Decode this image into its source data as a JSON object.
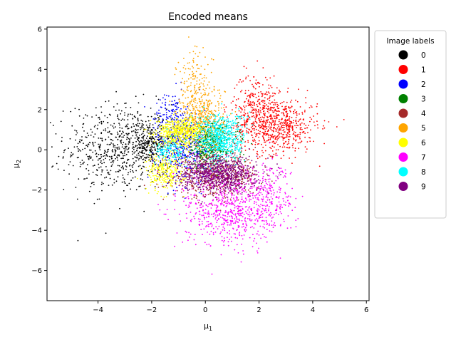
{
  "chart_data": {
    "type": "scatter",
    "title": "Encoded means",
    "xlabel": "μ",
    "xlabel_sub": "1",
    "ylabel": "μ",
    "ylabel_sub": "2",
    "xlim": [
      -5.9,
      6.1
    ],
    "ylim": [
      -7.5,
      6.1
    ],
    "xticks": [
      -4,
      -2,
      0,
      2,
      4,
      6
    ],
    "yticks": [
      -6,
      -4,
      -2,
      0,
      2,
      4,
      6
    ],
    "grid": false,
    "legend": {
      "title": "Image labels",
      "placement": "outside-right"
    },
    "series": [
      {
        "name": "0",
        "color": "#000000",
        "clusters": [
          {
            "cx": -3.2,
            "cy": 0.1,
            "sx": 1.0,
            "sy": 1.1,
            "n": 650
          },
          {
            "cx": -2.1,
            "cy": 0.3,
            "sx": 0.4,
            "sy": 0.5,
            "n": 250
          }
        ]
      },
      {
        "name": "1",
        "color": "#ff0000",
        "clusters": [
          {
            "cx": 2.6,
            "cy": 1.2,
            "sx": 0.8,
            "sy": 0.7,
            "n": 700
          },
          {
            "cx": 1.9,
            "cy": 2.4,
            "sx": 0.4,
            "sy": 0.7,
            "n": 200
          }
        ]
      },
      {
        "name": "2",
        "color": "#0000ff",
        "clusters": [
          {
            "cx": -0.8,
            "cy": 0.2,
            "sx": 0.5,
            "sy": 0.9,
            "n": 450
          },
          {
            "cx": -1.3,
            "cy": 1.9,
            "sx": 0.3,
            "sy": 0.5,
            "n": 100
          }
        ]
      },
      {
        "name": "3",
        "color": "#008000",
        "clusters": [
          {
            "cx": 0.2,
            "cy": 0.2,
            "sx": 0.5,
            "sy": 0.6,
            "n": 450
          }
        ]
      },
      {
        "name": "4",
        "color": "#a52a2a",
        "clusters": [
          {
            "cx": 0.4,
            "cy": -1.3,
            "sx": 0.8,
            "sy": 0.5,
            "n": 550
          }
        ]
      },
      {
        "name": "5",
        "color": "#ffa500",
        "clusters": [
          {
            "cx": -0.1,
            "cy": 1.6,
            "sx": 0.4,
            "sy": 0.8,
            "n": 400
          },
          {
            "cx": -0.4,
            "cy": 3.4,
            "sx": 0.35,
            "sy": 0.8,
            "n": 120
          }
        ]
      },
      {
        "name": "6",
        "color": "#ffff00",
        "clusters": [
          {
            "cx": -0.9,
            "cy": 0.9,
            "sx": 0.45,
            "sy": 0.35,
            "n": 550
          },
          {
            "cx": -1.5,
            "cy": -1.1,
            "sx": 0.35,
            "sy": 0.45,
            "n": 280
          }
        ]
      },
      {
        "name": "7",
        "color": "#ff00ff",
        "clusters": [
          {
            "cx": 0.8,
            "cy": -3.0,
            "sx": 0.8,
            "sy": 0.9,
            "n": 600
          },
          {
            "cx": 2.3,
            "cy": -2.3,
            "sx": 0.5,
            "sy": 0.9,
            "n": 250
          }
        ]
      },
      {
        "name": "8",
        "color": "#00ffff",
        "clusters": [
          {
            "cx": 0.6,
            "cy": 0.6,
            "sx": 0.45,
            "sy": 0.6,
            "n": 600
          },
          {
            "cx": -1.3,
            "cy": -0.1,
            "sx": 0.3,
            "sy": 0.3,
            "n": 120
          }
        ]
      },
      {
        "name": "9",
        "color": "#800080",
        "clusters": [
          {
            "cx": 0.5,
            "cy": -1.2,
            "sx": 0.7,
            "sy": 0.45,
            "n": 800
          }
        ]
      }
    ]
  }
}
